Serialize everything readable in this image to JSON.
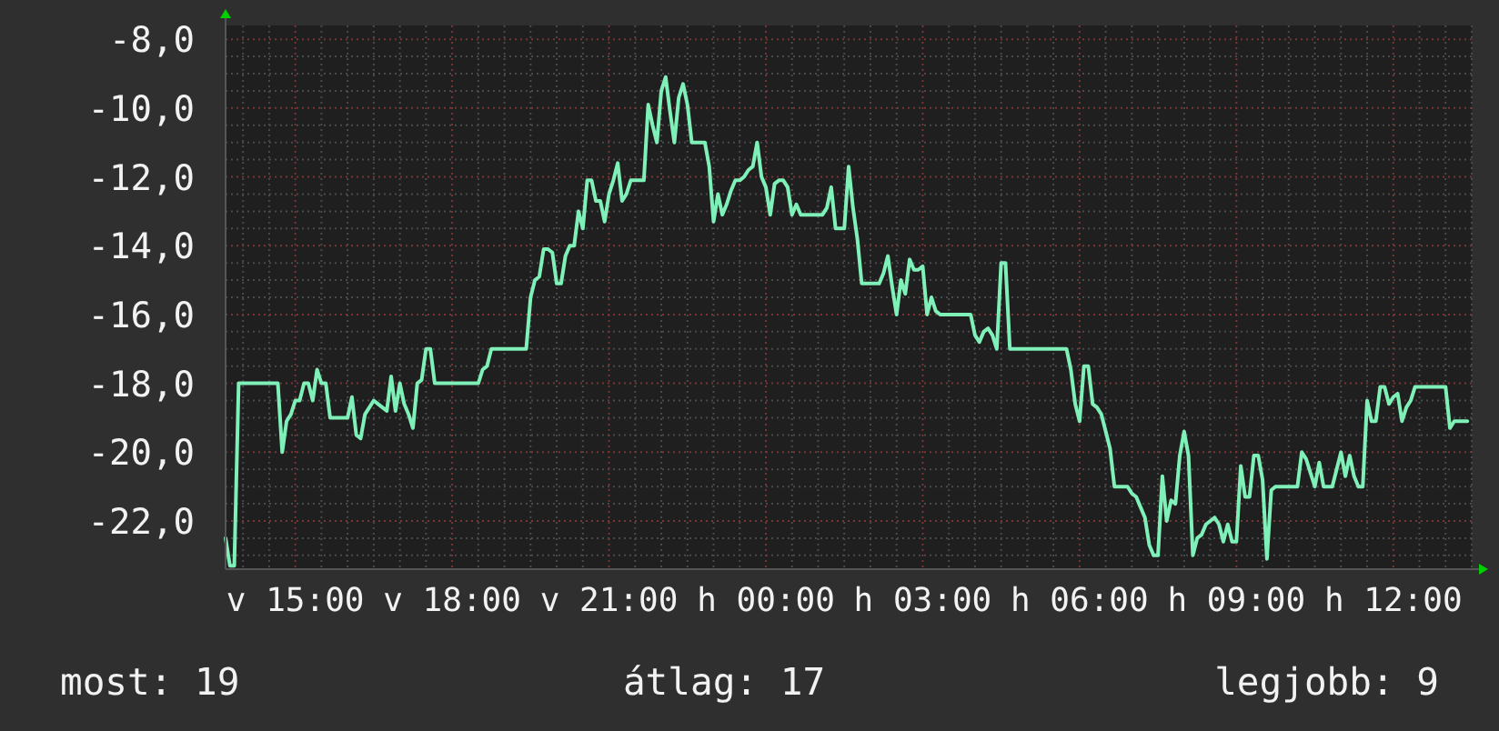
{
  "chart_data": {
    "type": "line",
    "color": "#7ef0b8",
    "ylim": [
      -23.4,
      -7.6
    ],
    "yticks": [
      {
        "value": -8,
        "label": "-8,0"
      },
      {
        "value": -10,
        "label": "-10,0"
      },
      {
        "value": -12,
        "label": "-12,0"
      },
      {
        "value": -14,
        "label": "-14,0"
      },
      {
        "value": -16,
        "label": "-16,0"
      },
      {
        "value": -18,
        "label": "-18,0"
      },
      {
        "value": -20,
        "label": "-20,0"
      },
      {
        "value": -22,
        "label": "-22,0"
      }
    ],
    "grid": true,
    "categories": [
      null,
      null,
      null,
      null,
      null,
      null,
      null,
      null,
      null,
      null,
      null,
      null,
      null,
      null,
      null,
      null,
      "v 15:00",
      null,
      null,
      null,
      null,
      null,
      null,
      null,
      null,
      null,
      null,
      null,
      null,
      null,
      null,
      null,
      null,
      null,
      null,
      null,
      null,
      null,
      null,
      null,
      null,
      null,
      null,
      null,
      null,
      null,
      null,
      null,
      null,
      null,
      null,
      null,
      "v 18:00",
      null,
      null,
      null,
      null,
      null,
      null,
      null,
      null,
      null,
      null,
      null,
      null,
      null,
      null,
      null,
      null,
      null,
      null,
      null,
      null,
      null,
      null,
      null,
      null,
      null,
      null,
      null,
      null,
      null,
      null,
      null,
      null,
      null,
      null,
      null,
      "v 21:00",
      null,
      null,
      null,
      null,
      null,
      null,
      null,
      null,
      null,
      null,
      null,
      null,
      null,
      null,
      null,
      null,
      null,
      null,
      null,
      null,
      null,
      null,
      null,
      null,
      null,
      null,
      null,
      null,
      null,
      null,
      null,
      null,
      null,
      null,
      null,
      "h 00:00",
      null,
      null,
      null,
      null,
      null,
      null,
      null,
      null,
      null,
      null,
      null,
      null,
      null,
      null,
      null,
      null,
      null,
      null,
      null,
      null,
      null,
      null,
      null,
      null,
      null,
      null,
      null,
      null,
      null,
      null,
      null,
      null,
      null,
      null,
      null,
      "h 03:00",
      null,
      null,
      null,
      null,
      null,
      null,
      null,
      null,
      null,
      null,
      null,
      null,
      null,
      null,
      null,
      null,
      null,
      null,
      null,
      null,
      null,
      null,
      null,
      null,
      null,
      null,
      null,
      null,
      null,
      null,
      null,
      null,
      null,
      null,
      null,
      "h 06:00",
      null,
      null,
      null,
      null,
      null,
      null,
      null,
      null,
      null,
      null,
      null,
      null,
      null,
      null,
      null,
      null,
      null,
      null,
      null,
      null,
      null,
      null,
      null,
      null,
      null,
      null,
      null,
      null,
      null,
      null,
      null,
      null,
      null,
      null,
      null,
      "h 09:00",
      null,
      null,
      null,
      null,
      null,
      null,
      null,
      null,
      null,
      null,
      null,
      null,
      null,
      null,
      null,
      null,
      null,
      null,
      null,
      null,
      null,
      null,
      null,
      null,
      null,
      null,
      null,
      null,
      null,
      null,
      null,
      null,
      null,
      null,
      null,
      "h 12:00",
      null,
      null,
      null,
      null,
      null,
      null,
      null,
      null,
      null,
      null,
      null,
      null,
      null,
      null,
      null,
      null,
      null,
      null
    ],
    "values": [
      -22.5,
      -23.3,
      -23.3,
      -18.0,
      -18.0,
      -18.0,
      -18.0,
      -18.0,
      -18.0,
      -18.0,
      -18.0,
      -18.0,
      -18.0,
      -20.0,
      -19.1,
      -18.9,
      -18.5,
      -18.5,
      -18.0,
      -18.0,
      -18.5,
      -17.6,
      -18.0,
      -18.0,
      -19.0,
      -19.0,
      -19.0,
      -19.0,
      -19.0,
      -18.4,
      -19.5,
      -19.6,
      -18.9,
      -18.7,
      -18.5,
      -18.6,
      -18.7,
      -18.8,
      -17.8,
      -18.8,
      -18.0,
      -18.6,
      -18.9,
      -19.3,
      -18.0,
      -17.9,
      -17.0,
      -17.0,
      -18.0,
      -18.0,
      -18.0,
      -18.0,
      -18.0,
      -18.0,
      -18.0,
      -18.0,
      -18.0,
      -18.0,
      -18.0,
      -17.6,
      -17.5,
      -17.0,
      -17.0,
      -17.0,
      -17.0,
      -17.0,
      -17.0,
      -17.0,
      -17.0,
      -17.0,
      -15.5,
      -15.0,
      -14.9,
      -14.1,
      -14.1,
      -14.2,
      -15.1,
      -15.1,
      -14.3,
      -14.0,
      -14.0,
      -13.0,
      -13.5,
      -12.1,
      -12.1,
      -12.7,
      -12.7,
      -13.3,
      -12.5,
      -12.1,
      -11.6,
      -12.7,
      -12.5,
      -12.1,
      -12.1,
      -12.1,
      -12.1,
      -9.9,
      -10.5,
      -11.0,
      -9.5,
      -9.1,
      -10.1,
      -11.0,
      -9.7,
      -9.3,
      -9.9,
      -11.0,
      -11.0,
      -11.0,
      -11.0,
      -11.7,
      -13.3,
      -12.5,
      -13.1,
      -12.8,
      -12.4,
      -12.1,
      -12.1,
      -12.0,
      -11.8,
      -11.7,
      -11.0,
      -12.0,
      -12.3,
      -13.1,
      -12.2,
      -12.1,
      -12.1,
      -12.3,
      -13.1,
      -12.8,
      -13.1,
      -13.1,
      -13.1,
      -13.1,
      -13.1,
      -13.1,
      -12.9,
      -12.3,
      -13.5,
      -13.5,
      -13.5,
      -11.7,
      -12.9,
      -13.8,
      -15.1,
      -15.1,
      -15.1,
      -15.1,
      -15.1,
      -14.8,
      -14.3,
      -15.2,
      -16.0,
      -15.0,
      -15.4,
      -14.4,
      -14.7,
      -14.7,
      -14.6,
      -16.0,
      -15.5,
      -15.9,
      -16.0,
      -16.0,
      -16.0,
      -16.0,
      -16.0,
      -16.0,
      -16.0,
      -16.0,
      -16.6,
      -16.8,
      -16.5,
      -16.4,
      -16.6,
      -17.0,
      -14.5,
      -14.5,
      -17.0,
      -17.0,
      -17.0,
      -17.0,
      -17.0,
      -17.0,
      -17.0,
      -17.0,
      -17.0,
      -17.0,
      -17.0,
      -17.0,
      -17.0,
      -17.0,
      -17.6,
      -18.6,
      -19.1,
      -17.5,
      -17.5,
      -18.6,
      -18.7,
      -18.9,
      -19.4,
      -19.9,
      -21.0,
      -21.0,
      -21.0,
      -21.0,
      -21.2,
      -21.3,
      -21.6,
      -21.9,
      -22.7,
      -23.0,
      -23.0,
      -20.7,
      -22.0,
      -21.4,
      -21.5,
      -20.1,
      -19.4,
      -20.1,
      -23.0,
      -22.5,
      -22.4,
      -22.1,
      -22.0,
      -21.9,
      -22.1,
      -22.6,
      -22.1,
      -22.6,
      -22.6,
      -20.4,
      -21.3,
      -21.3,
      -20.1,
      -20.1,
      -20.8,
      -23.1,
      -21.1,
      -21.0,
      -21.0,
      -21.0,
      -21.0,
      -21.0,
      -21.0,
      -20.0,
      -20.2,
      -20.6,
      -21.0,
      -20.3,
      -21.0,
      -21.0,
      -21.0,
      -20.5,
      -20.0,
      -20.7,
      -20.1,
      -20.7,
      -21.0,
      -21.0,
      -18.5,
      -19.1,
      -19.1,
      -18.1,
      -18.1,
      -18.6,
      -18.4,
      -18.3,
      -19.1,
      -18.7,
      -18.5,
      -18.1,
      -18.1,
      -18.1,
      -18.1,
      -18.1,
      -18.1,
      -18.1,
      -18.1,
      -19.3,
      -19.1,
      -19.1,
      -19.1,
      -19.1,
      null
    ],
    "annotations": [
      "most: 19",
      "átlag: 17",
      "legjobb: 9"
    ]
  }
}
